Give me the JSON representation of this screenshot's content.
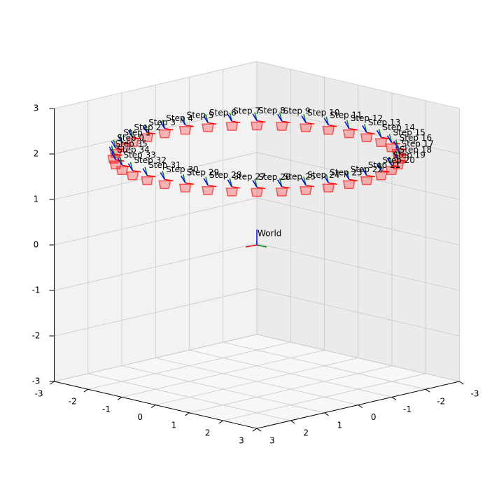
{
  "chart_data": {
    "type": "pose3d",
    "xlim": [
      -3,
      3
    ],
    "ylim": [
      -3,
      3
    ],
    "zlim": [
      -3,
      3
    ],
    "xticks": [
      -3,
      -2,
      -1,
      0,
      1,
      2,
      3
    ],
    "yticks": [
      -3,
      -2,
      -1,
      0,
      1,
      2,
      3
    ],
    "zticks": [
      -3,
      -2,
      -1,
      0,
      1,
      2,
      3
    ],
    "grid": true,
    "origin_label": "World",
    "points": [
      {
        "label": "Step 0",
        "x": -2.46,
        "y": 1.72,
        "z": 2
      },
      {
        "label": "Step 1",
        "x": -2.72,
        "y": 1.27,
        "z": 2
      },
      {
        "label": "Step 2",
        "x": -2.9,
        "y": 0.78,
        "z": 2
      },
      {
        "label": "Step 3",
        "x": -2.99,
        "y": 0.26,
        "z": 2
      },
      {
        "label": "Step 4",
        "x": -2.99,
        "y": -0.26,
        "z": 2
      },
      {
        "label": "Step 5",
        "x": -2.9,
        "y": -0.78,
        "z": 2
      },
      {
        "label": "Step 6",
        "x": -2.72,
        "y": -1.27,
        "z": 2
      },
      {
        "label": "Step 7",
        "x": -2.46,
        "y": -1.72,
        "z": 2
      },
      {
        "label": "Step 8",
        "x": -2.12,
        "y": -2.12,
        "z": 2
      },
      {
        "label": "Step 9",
        "x": -1.72,
        "y": -2.46,
        "z": 2
      },
      {
        "label": "Step 10",
        "x": -1.27,
        "y": -2.72,
        "z": 2
      },
      {
        "label": "Step 11",
        "x": -0.78,
        "y": -2.9,
        "z": 2
      },
      {
        "label": "Step 12",
        "x": -0.26,
        "y": -2.99,
        "z": 2
      },
      {
        "label": "Step 13",
        "x": 0.26,
        "y": -2.99,
        "z": 2
      },
      {
        "label": "Step 14",
        "x": 0.78,
        "y": -2.9,
        "z": 2
      },
      {
        "label": "Step 15",
        "x": 1.27,
        "y": -2.72,
        "z": 2
      },
      {
        "label": "Step 16",
        "x": 1.72,
        "y": -2.46,
        "z": 2
      },
      {
        "label": "Step 17",
        "x": 2.12,
        "y": -2.12,
        "z": 2
      },
      {
        "label": "Step 18",
        "x": 2.46,
        "y": -1.72,
        "z": 2
      },
      {
        "label": "Step 19",
        "x": 2.72,
        "y": -1.27,
        "z": 2
      },
      {
        "label": "Step 20",
        "x": 2.9,
        "y": -0.78,
        "z": 2
      },
      {
        "label": "Step 21",
        "x": 2.99,
        "y": -0.26,
        "z": 2
      },
      {
        "label": "Step 22",
        "x": 2.99,
        "y": 0.26,
        "z": 2
      },
      {
        "label": "Step 23",
        "x": 2.9,
        "y": 0.78,
        "z": 2
      },
      {
        "label": "Step 24",
        "x": 2.72,
        "y": 1.27,
        "z": 2
      },
      {
        "label": "Step 25",
        "x": 2.46,
        "y": 1.72,
        "z": 2
      },
      {
        "label": "Step 26",
        "x": 2.12,
        "y": 2.12,
        "z": 2
      },
      {
        "label": "Step 27",
        "x": 1.72,
        "y": 2.46,
        "z": 2
      },
      {
        "label": "Step 28",
        "x": 1.27,
        "y": 2.72,
        "z": 2
      },
      {
        "label": "Step 29",
        "x": 0.78,
        "y": 2.9,
        "z": 2
      },
      {
        "label": "Step 30",
        "x": 0.26,
        "y": 2.99,
        "z": 2
      },
      {
        "label": "Step 31",
        "x": -0.26,
        "y": 2.99,
        "z": 2
      },
      {
        "label": "Step 32",
        "x": -0.78,
        "y": 2.9,
        "z": 2
      },
      {
        "label": "Step 33",
        "x": -1.27,
        "y": 2.72,
        "z": 2
      },
      {
        "label": "Step 34",
        "x": -1.72,
        "y": 2.46,
        "z": 2
      },
      {
        "label": "Step 35",
        "x": -2.12,
        "y": 2.12,
        "z": 2
      }
    ]
  }
}
